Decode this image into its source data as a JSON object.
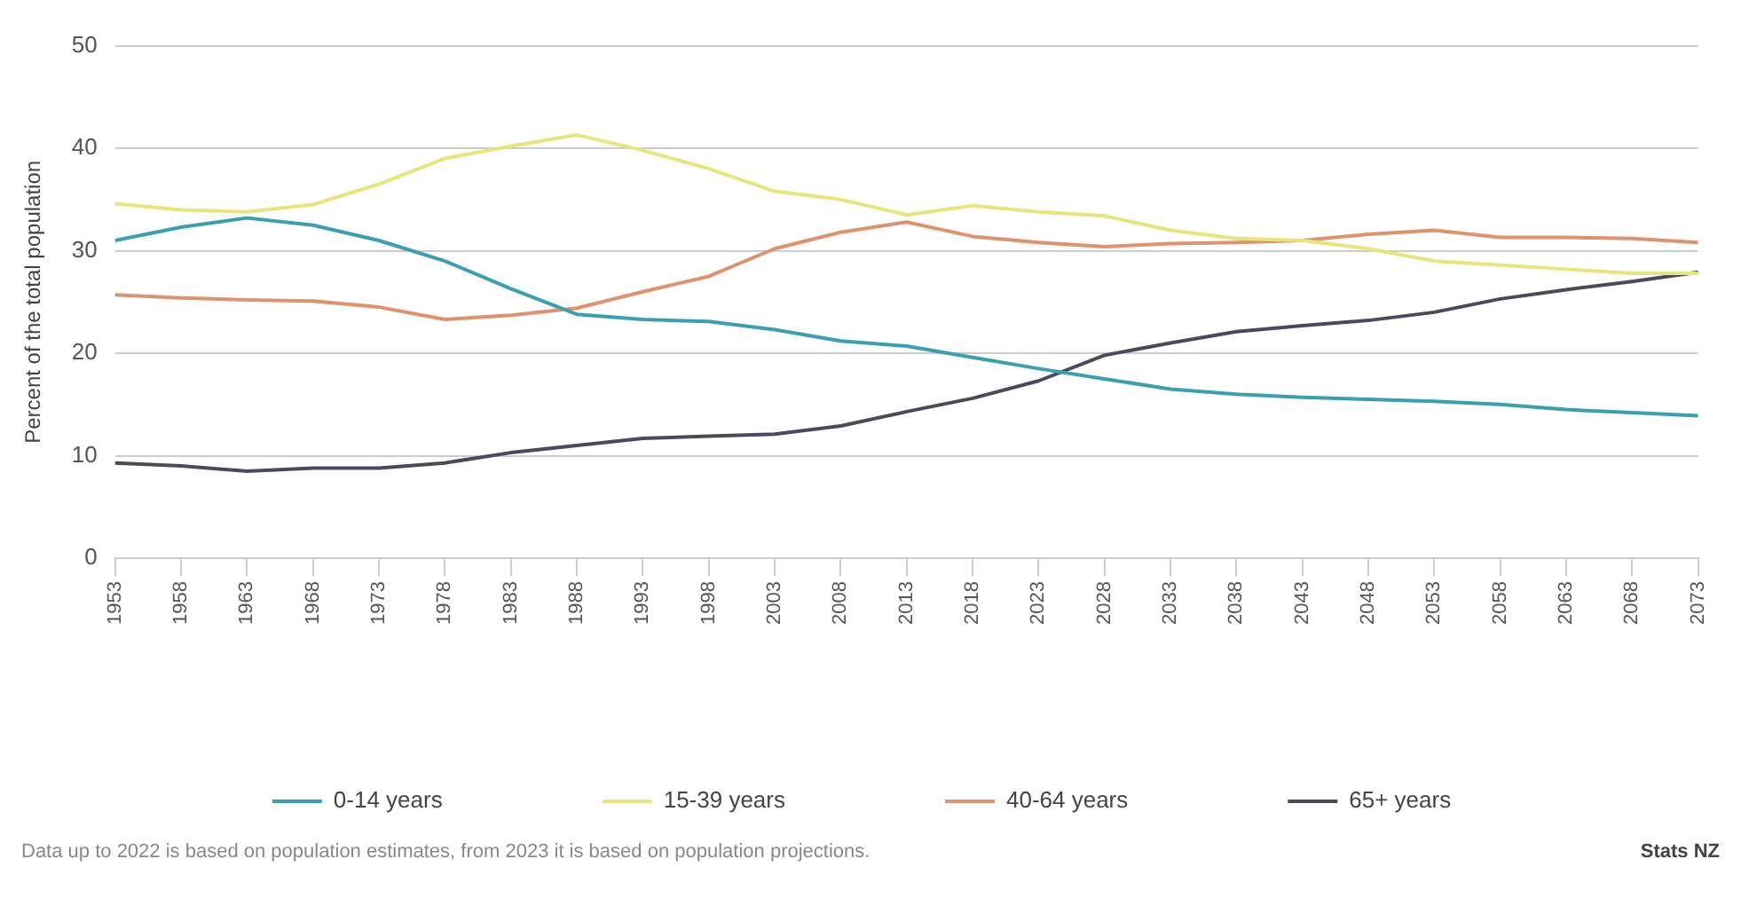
{
  "chart_data": {
    "type": "line",
    "ylabel": "Percent of the total population",
    "x": [
      1953,
      1958,
      1963,
      1968,
      1973,
      1978,
      1983,
      1988,
      1993,
      1998,
      2003,
      2008,
      2013,
      2018,
      2023,
      2028,
      2033,
      2038,
      2043,
      2048,
      2053,
      2058,
      2063,
      2068,
      2073
    ],
    "series": [
      {
        "name": "0-14 years",
        "color": "#3a9fb0",
        "values": [
          31,
          32.3,
          33.2,
          32.5,
          31,
          29,
          26.3,
          23.8,
          23.3,
          23.1,
          22.3,
          21.2,
          20.7,
          19.6,
          18.5,
          17.5,
          16.5,
          16,
          15.7,
          15.5,
          15.3,
          15,
          14.5,
          14.2,
          13.9
        ]
      },
      {
        "name": "15-39 years",
        "color": "#e6e67a",
        "values": [
          34.6,
          34,
          33.8,
          34.5,
          36.5,
          39,
          40.2,
          41.3,
          39.8,
          38,
          35.8,
          35,
          33.5,
          34.4,
          33.8,
          33.4,
          32,
          31.2,
          31,
          30.2,
          29,
          28.6,
          28.2,
          27.8,
          27.8
        ]
      },
      {
        "name": "40-64 years",
        "color": "#e0926c",
        "values": [
          25.7,
          25.4,
          25.2,
          25.1,
          24.5,
          23.3,
          23.7,
          24.4,
          26,
          27.5,
          30.2,
          31.8,
          32.8,
          31.4,
          30.8,
          30.4,
          30.7,
          30.8,
          31,
          31.6,
          32,
          31.3,
          31.3,
          31.2,
          30.8
        ]
      },
      {
        "name": "65+ years",
        "color": "#4a4a5c",
        "values": [
          9.3,
          9,
          8.5,
          8.8,
          8.8,
          9.3,
          10.3,
          11,
          11.7,
          11.9,
          12.1,
          12.9,
          14.3,
          15.6,
          17.3,
          19.8,
          21,
          22.1,
          22.7,
          23.2,
          24,
          25.3,
          26.2,
          27,
          27.9
        ]
      }
    ],
    "xlim": [
      1953,
      2073
    ],
    "xticks": [
      1953,
      1958,
      1963,
      1968,
      1973,
      1978,
      1983,
      1988,
      1993,
      1998,
      2003,
      2008,
      2013,
      2018,
      2023,
      2028,
      2033,
      2038,
      2043,
      2048,
      2053,
      2058,
      2063,
      2068,
      2073
    ],
    "ylim": [
      0,
      50
    ],
    "yticks": [
      0,
      10,
      20,
      30,
      40,
      50
    ],
    "grid": "y",
    "legend": "bottom",
    "marker": "none",
    "line_style": "solid",
    "annotations": [
      "Data up to 2022 is based on population estimates, from 2023 it is based on population projections.",
      "Stats NZ"
    ]
  }
}
